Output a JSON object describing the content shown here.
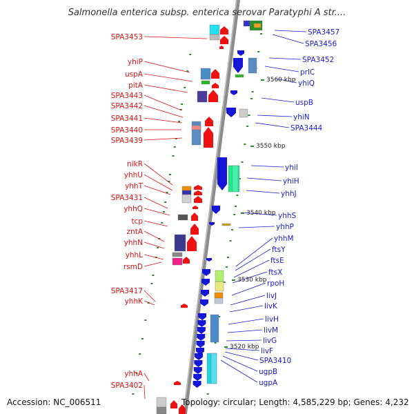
{
  "title": "Salmonella enterica subsp. enterica serovar Paratyphi A str....",
  "footer": {
    "accession": "Accession: NC_006511",
    "topology": "Topology: circular; Length: 4,585,229 bp; Genes: 4,232"
  },
  "colors": {
    "left_label": "#dd1111",
    "right_label": "#1a1ad0",
    "backbone": "#8c8c8c",
    "tick": "#2a8a2a"
  },
  "scale_labels": [
    {
      "text": "3560 kbp"
    },
    {
      "text": "3550 kbp"
    },
    {
      "text": "3540 kbp"
    },
    {
      "text": "3530 kbp"
    },
    {
      "text": "3520 kbp"
    }
  ],
  "left_genes": [
    "SPA3453",
    "yhiP",
    "uspA",
    "pitA",
    "SPA3443",
    "SPA3442",
    "SPA3441",
    "SPA3440",
    "SPA3439",
    "nikR",
    "yhhU",
    "yhhT",
    "SPA3431",
    "yhhQ",
    "tcp",
    "zntA",
    "yhhN",
    "yhhL",
    "rsmD",
    "SPA3417",
    "yhhK",
    "yhhA",
    "SPA3402"
  ],
  "right_genes": [
    "SPA3457",
    "SPA3456",
    "SPA3452",
    "prlC",
    "yhiQ",
    "uspB",
    "yhiN",
    "SPA3444",
    "yhiI",
    "yhiH",
    "yhhJ",
    "yhhS",
    "yhhP",
    "yhhM",
    "ftsY",
    "ftsE",
    "ftsX",
    "rpoH",
    "livJ",
    "livK",
    "livH",
    "livM",
    "livG",
    "livF",
    "SPA3410",
    "ugpB",
    "ugpA"
  ]
}
